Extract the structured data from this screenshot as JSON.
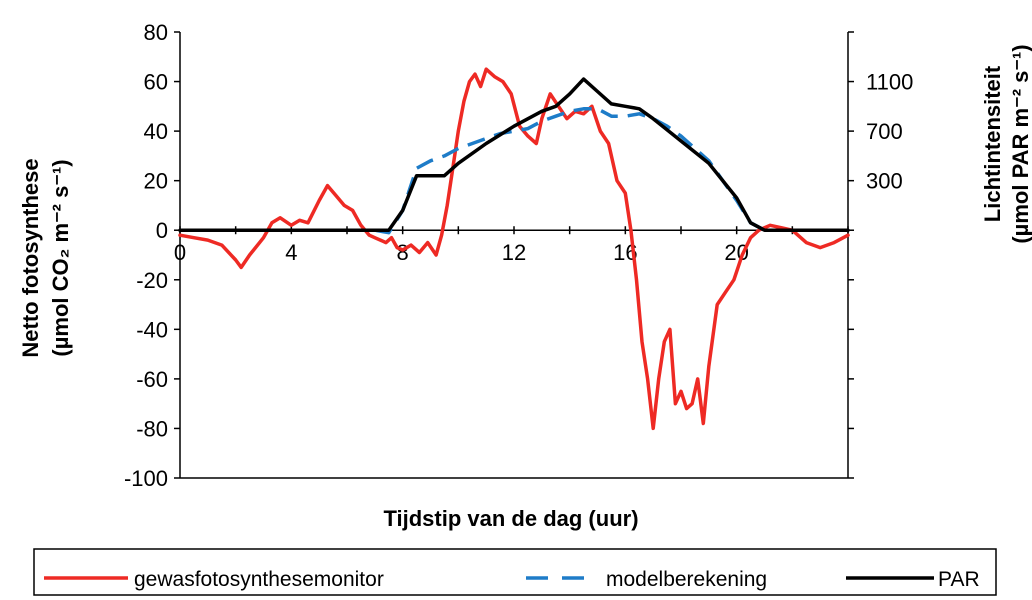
{
  "chart_data": {
    "type": "line",
    "xlabel": "Tijdstip van de dag (uur)",
    "ylabel_left_line1": "Netto fotosynthese",
    "ylabel_left_line2": "(µmol CO₂ m⁻² s⁻¹)",
    "ylabel_right_line1": "Lichtintensiteit",
    "ylabel_right_line2": "(µmol PAR m⁻² s⁻¹)",
    "xlim": [
      0,
      24
    ],
    "ylim_left": [
      -100,
      80
    ],
    "y2lim": [
      -100,
      80
    ],
    "x_ticks": [
      0,
      4,
      8,
      12,
      16,
      20
    ],
    "y_ticks_left": [
      80,
      60,
      40,
      20,
      0,
      -20,
      -40,
      -60,
      -80,
      -100
    ],
    "y_ticks_right_labels": [
      {
        "label": "1100",
        "at_left_axis": 60
      },
      {
        "label": "700",
        "at_left_axis": 40
      },
      {
        "label": "300",
        "at_left_axis": 20
      }
    ],
    "grid": false,
    "legend_position": "bottom",
    "colors": {
      "gewasfotosynthesemonitor": "#ee2a24",
      "modelberekening": "#1e7cc8",
      "PAR": "#000000"
    },
    "series": [
      {
        "name": "gewasfotosynthesemonitor",
        "axis": "left",
        "style": "solid",
        "x": [
          0,
          0.5,
          1,
          1.5,
          2,
          2.2,
          2.5,
          3,
          3.3,
          3.6,
          4,
          4.3,
          4.6,
          5,
          5.3,
          5.6,
          5.9,
          6.2,
          6.5,
          6.8,
          7,
          7.2,
          7.4,
          7.6,
          7.8,
          8,
          8.3,
          8.6,
          8.9,
          9.2,
          9.4,
          9.6,
          9.8,
          10,
          10.2,
          10.4,
          10.6,
          10.8,
          11,
          11.3,
          11.6,
          11.9,
          12.2,
          12.5,
          12.8,
          13,
          13.3,
          13.6,
          13.9,
          14.2,
          14.5,
          14.8,
          15.1,
          15.4,
          15.7,
          16,
          16.2,
          16.4,
          16.6,
          16.8,
          17,
          17.2,
          17.4,
          17.6,
          17.8,
          18,
          18.2,
          18.4,
          18.6,
          18.8,
          19,
          19.3,
          19.6,
          19.9,
          20.2,
          20.5,
          20.8,
          21.2,
          21.6,
          22,
          22.5,
          23,
          23.5,
          24
        ],
        "y": [
          -2,
          -3,
          -4,
          -6,
          -12,
          -15,
          -10,
          -3,
          3,
          5,
          2,
          4,
          3,
          12,
          18,
          14,
          10,
          8,
          2,
          -2,
          -3,
          -4,
          -5,
          -3,
          -7,
          -8,
          -6,
          -9,
          -5,
          -10,
          -2,
          10,
          25,
          40,
          52,
          60,
          63,
          58,
          65,
          62,
          60,
          55,
          42,
          38,
          35,
          45,
          55,
          50,
          45,
          48,
          47,
          50,
          40,
          35,
          20,
          15,
          0,
          -20,
          -45,
          -60,
          -80,
          -60,
          -45,
          -40,
          -70,
          -65,
          -72,
          -70,
          -60,
          -78,
          -55,
          -30,
          -25,
          -20,
          -10,
          -3,
          0,
          2,
          1,
          0,
          -5,
          -7,
          -5,
          -2
        ]
      },
      {
        "name": "modelberekening",
        "axis": "left",
        "style": "dashed",
        "x": [
          0,
          6,
          7,
          7.5,
          8,
          8.5,
          9,
          9.5,
          10,
          10.5,
          11,
          11.5,
          12,
          12.5,
          13,
          13.5,
          14,
          14.5,
          15,
          15.5,
          16,
          16.5,
          17,
          17.5,
          18,
          18.5,
          19,
          19.5,
          20,
          20.5,
          21,
          24
        ],
        "y": [
          0,
          0,
          0,
          -1,
          8,
          25,
          28,
          30,
          33,
          35,
          37,
          39,
          40,
          41,
          44,
          46,
          48,
          49,
          49,
          46,
          46,
          47,
          45,
          42,
          38,
          33,
          28,
          20,
          12,
          3,
          0,
          0
        ]
      },
      {
        "name": "PAR",
        "axis": "right",
        "style": "solid",
        "x": [
          0,
          7.5,
          8,
          8.5,
          9.5,
          10,
          11,
          12,
          13,
          13.5,
          14,
          14.5,
          15,
          15.5,
          16,
          16.5,
          17,
          18,
          19,
          20,
          20.5,
          21,
          24
        ],
        "y": [
          0,
          0,
          8,
          22,
          22,
          27,
          35,
          42,
          48,
          50,
          55,
          61,
          56,
          51,
          50,
          49,
          45,
          36,
          27,
          13,
          3,
          0,
          0
        ]
      }
    ]
  },
  "legend": {
    "items": [
      {
        "label": "gewasfotosynthesemonitor",
        "color": "#ee2a24",
        "style": "solid"
      },
      {
        "label": "modelberekening",
        "color": "#1e7cc8",
        "style": "dashed"
      },
      {
        "label": "PAR",
        "color": "#000000",
        "style": "solid"
      }
    ]
  }
}
